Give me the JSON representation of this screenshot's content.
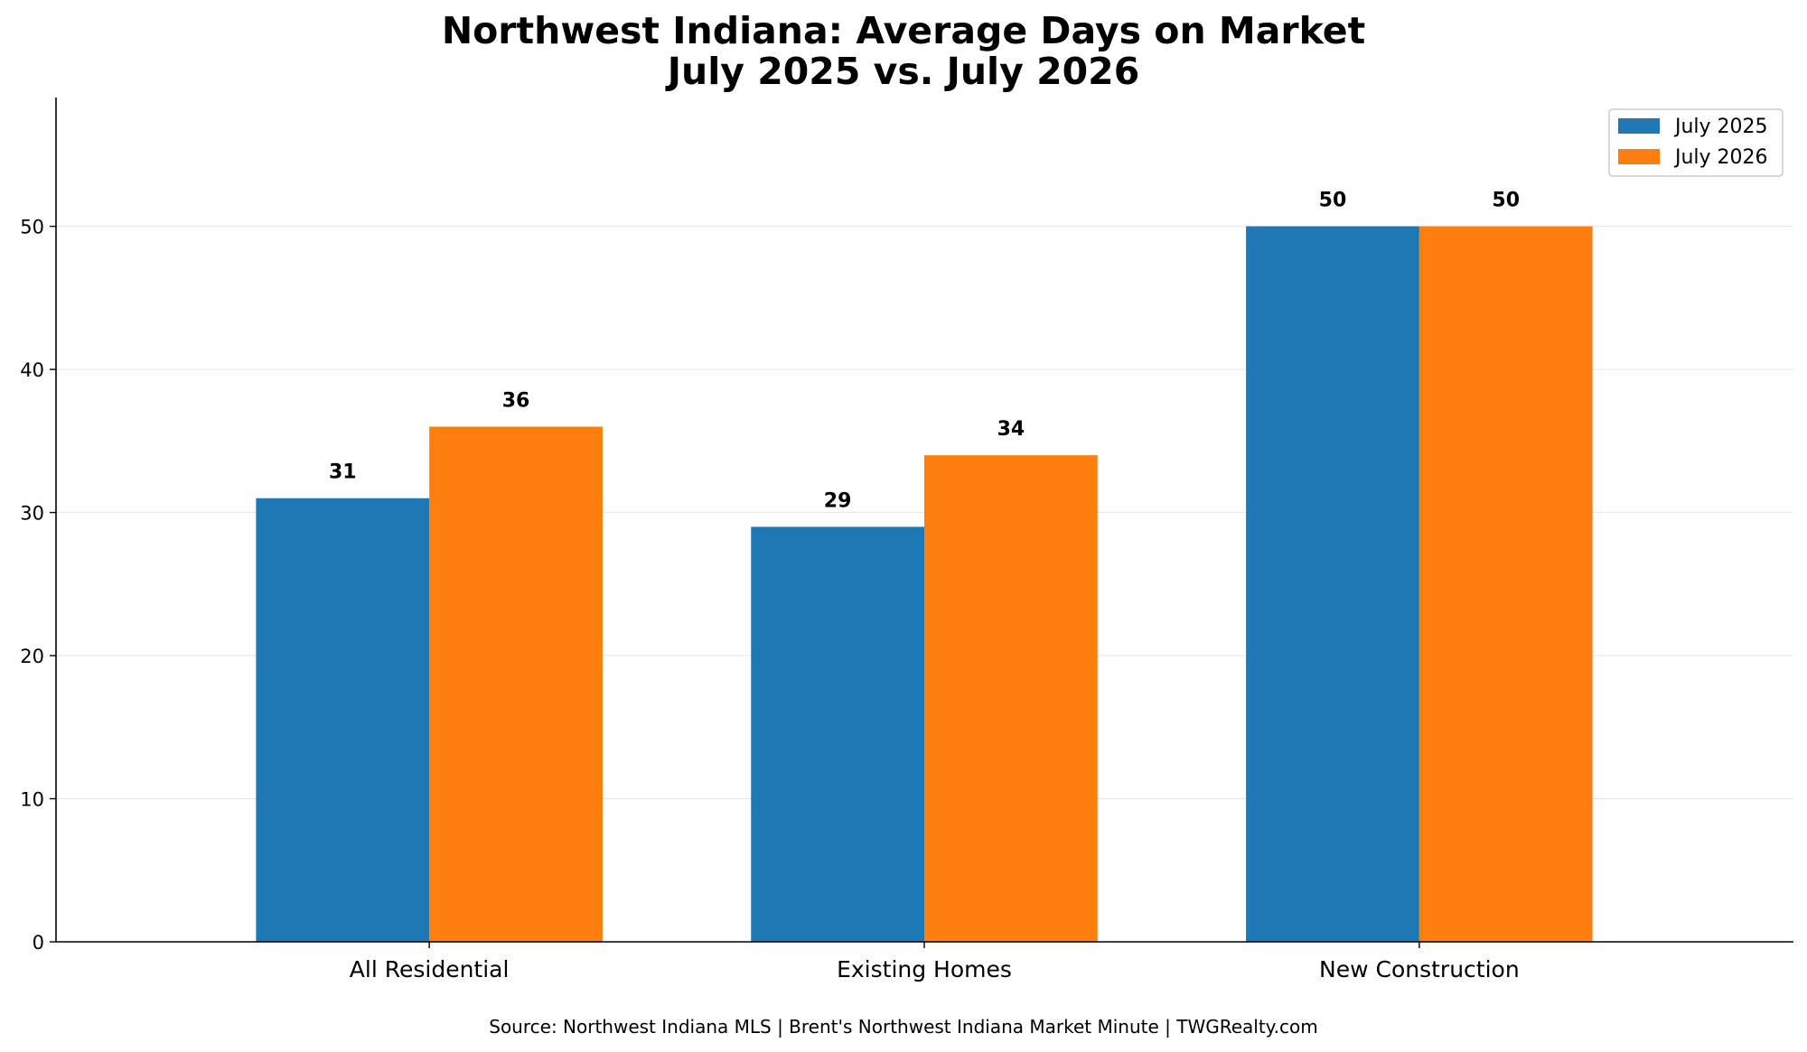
{
  "chart_data": {
    "type": "bar",
    "title": "Northwest Indiana: Average Days on Market",
    "subtitle": "July 2025 vs. July 2026",
    "xlabel": "",
    "ylabel": "",
    "categories": [
      "All Residential",
      "Existing Homes",
      "New Construction"
    ],
    "series": [
      {
        "name": "July 2025",
        "values": [
          31,
          29,
          50
        ],
        "color": "#1f77b4"
      },
      {
        "name": "July 2026",
        "values": [
          36,
          34,
          50
        ],
        "color": "#ff7f0e"
      }
    ],
    "ylim": [
      0,
      59
    ],
    "yticks": [
      0,
      10,
      20,
      30,
      40,
      50
    ],
    "grid": true,
    "legend_position": "top-right",
    "source": "Source: Northwest Indiana MLS | Brent's Northwest Indiana Market Minute | TWGRealty.com"
  }
}
